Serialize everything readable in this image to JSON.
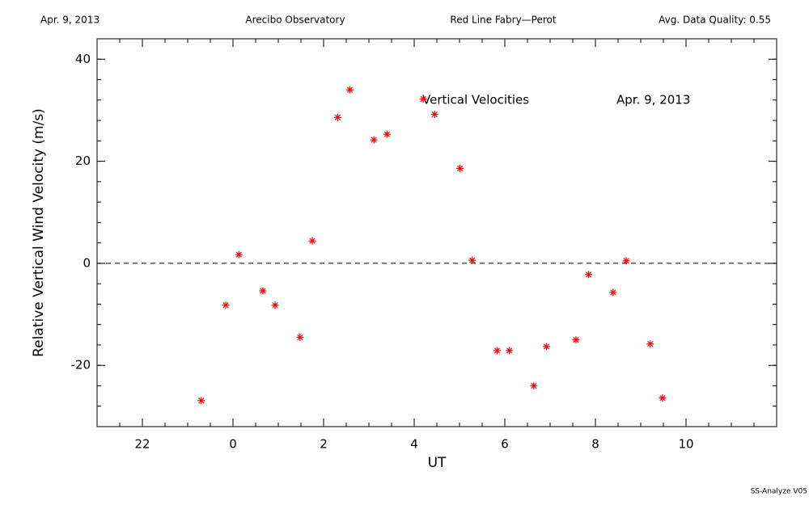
{
  "chart_data": {
    "type": "scatter",
    "header": [
      "Apr. 9, 2013",
      "Arecibo Observatory",
      "Red Line Fabry—Perot",
      "Avg. Data Quality: 0.55"
    ],
    "annotations": [
      "Vertical Velocities",
      "Apr. 9, 2013"
    ],
    "footer": "SS-Analyze V05",
    "x_label": "UT",
    "y_label": "Relative Vertical Wind Velocity (m/s)",
    "xlim": [
      -3,
      12
    ],
    "ylim": [
      -32,
      44
    ],
    "xticks": [
      {
        "value": -2,
        "label": "22"
      },
      0,
      2,
      4,
      6,
      8,
      10
    ],
    "yticks": [
      -20,
      0,
      20,
      40
    ],
    "xminor": 0.5,
    "yminor": 4,
    "reference_line": 0,
    "color": "#ff0000",
    "x": [
      -0.7,
      -0.16,
      0.13,
      0.66,
      0.93,
      1.48,
      1.75,
      2.31,
      2.58,
      3.11,
      3.4,
      4.2,
      4.45,
      5.01,
      5.28,
      5.83,
      6.1,
      6.64,
      6.92,
      7.57,
      7.85,
      8.39,
      8.68,
      9.21,
      9.48
    ],
    "values": [
      -26.9,
      -8.2,
      1.7,
      -5.4,
      -8.2,
      -14.5,
      4.4,
      28.6,
      34.0,
      24.2,
      25.3,
      32.2,
      29.2,
      18.6,
      0.6,
      -17.1,
      -17.1,
      -24.0,
      -16.3,
      -15.0,
      -2.2,
      -5.7,
      0.5,
      -15.8,
      -26.4
    ]
  }
}
